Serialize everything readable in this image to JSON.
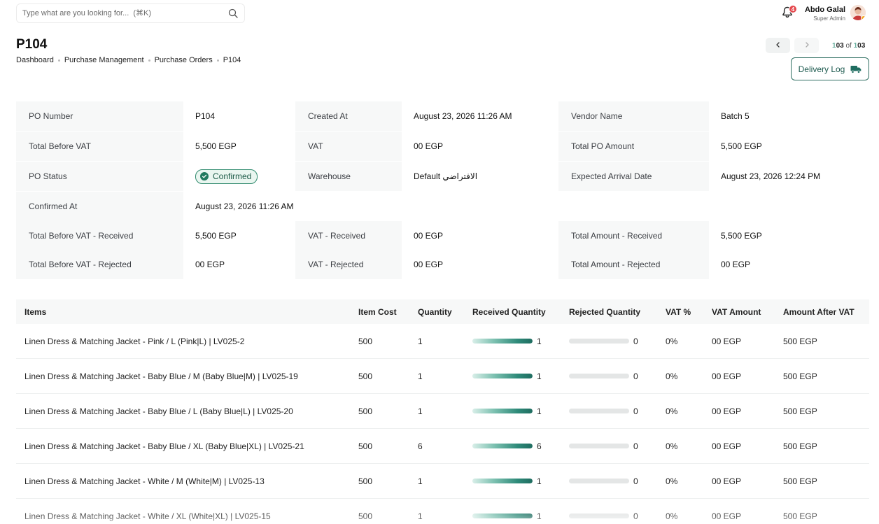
{
  "search": {
    "placeholder": "Type what are you looking for...  (⌘K)"
  },
  "notifications": {
    "count": "4"
  },
  "user": {
    "name": "Abdo Galal",
    "role": "Super Admin"
  },
  "page": {
    "title": "P104",
    "breadcrumb": [
      "Dashboard",
      "Purchase Management",
      "Purchase Orders",
      "P104"
    ]
  },
  "pager": {
    "current": "103",
    "of": "of",
    "total": "103",
    "current_prefix": "1",
    "current_suffix": "03",
    "total_prefix": "1",
    "total_suffix": "03"
  },
  "delivery_log": {
    "label": "Delivery Log"
  },
  "info": {
    "po_number": {
      "label": "PO Number",
      "value": "P104"
    },
    "created_at": {
      "label": "Created At",
      "value": "August 23, 2026 11:26 AM"
    },
    "vendor_name": {
      "label": "Vendor Name",
      "value": "Batch 5"
    },
    "total_before_vat": {
      "label": "Total Before VAT",
      "value": "5,500 EGP"
    },
    "vat": {
      "label": "VAT",
      "value": "00 EGP"
    },
    "total_po_amount": {
      "label": "Total PO Amount",
      "value": "5,500 EGP"
    },
    "po_status": {
      "label": "PO Status",
      "value": "Confirmed"
    },
    "warehouse": {
      "label": "Warehouse",
      "value": "Default الافتراضي"
    },
    "expected_arrival": {
      "label": "Expected Arrival Date",
      "value": "August 23, 2026 12:24 PM"
    },
    "confirmed_at": {
      "label": "Confirmed At",
      "value": "August 23, 2026 11:26 AM"
    },
    "tbv_received": {
      "label": "Total Before VAT - Received",
      "value": "5,500 EGP"
    },
    "vat_received": {
      "label": "VAT - Received",
      "value": "00 EGP"
    },
    "ta_received": {
      "label": "Total Amount - Received",
      "value": "5,500 EGP"
    },
    "tbv_rejected": {
      "label": "Total Before VAT - Rejected",
      "value": "00 EGP"
    },
    "vat_rejected": {
      "label": "VAT - Rejected",
      "value": "00 EGP"
    },
    "ta_rejected": {
      "label": "Total Amount - Rejected",
      "value": "00 EGP"
    }
  },
  "table": {
    "headers": [
      "Items",
      "Item Cost",
      "Quantity",
      "Received Quantity",
      "Rejected Quantity",
      "VAT %",
      "VAT Amount",
      "Amount After VAT"
    ],
    "rows": [
      {
        "item": "Linen Dress & Matching Jacket - Pink / L (Pink|L) | LV025-2",
        "cost": "500",
        "qty": "1",
        "received": "1",
        "received_fraction": 1,
        "rejected": "0",
        "rejected_fraction": 0,
        "vat_pct": "0%",
        "vat_amount": "00 EGP",
        "after_vat": "500 EGP"
      },
      {
        "item": "Linen Dress & Matching Jacket - Baby Blue / M (Baby Blue|M) | LV025-19",
        "cost": "500",
        "qty": "1",
        "received": "1",
        "received_fraction": 1,
        "rejected": "0",
        "rejected_fraction": 0,
        "vat_pct": "0%",
        "vat_amount": "00 EGP",
        "after_vat": "500 EGP"
      },
      {
        "item": "Linen Dress & Matching Jacket - Baby Blue / L (Baby Blue|L) | LV025-20",
        "cost": "500",
        "qty": "1",
        "received": "1",
        "received_fraction": 1,
        "rejected": "0",
        "rejected_fraction": 0,
        "vat_pct": "0%",
        "vat_amount": "00 EGP",
        "after_vat": "500 EGP"
      },
      {
        "item": "Linen Dress & Matching Jacket - Baby Blue / XL (Baby Blue|XL) | LV025-21",
        "cost": "500",
        "qty": "6",
        "received": "6",
        "received_fraction": 1,
        "rejected": "0",
        "rejected_fraction": 0,
        "vat_pct": "0%",
        "vat_amount": "00 EGP",
        "after_vat": "500 EGP"
      },
      {
        "item": "Linen Dress & Matching Jacket - White / M (White|M) | LV025-13",
        "cost": "500",
        "qty": "1",
        "received": "1",
        "received_fraction": 1,
        "rejected": "0",
        "rejected_fraction": 0,
        "vat_pct": "0%",
        "vat_amount": "00 EGP",
        "after_vat": "500 EGP"
      },
      {
        "item": "Linen Dress & Matching Jacket - White / XL (White|XL) | LV025-15",
        "cost": "500",
        "qty": "1",
        "received": "1",
        "received_fraction": 1,
        "rejected": "0",
        "rejected_fraction": 0,
        "vat_pct": "0%",
        "vat_amount": "00 EGP",
        "after_vat": "500 EGP"
      }
    ]
  },
  "colors": {
    "accent": "#1f6d60",
    "badge": "#e5484d",
    "status_bg": "#eaf6f0",
    "label_bg": "#f7f8f8"
  },
  "icons": {
    "search": "search-icon",
    "bell": "bell-icon",
    "truck": "truck-icon",
    "prev": "chevron-left-icon",
    "next": "chevron-right-icon",
    "check": "check-circle-icon"
  }
}
